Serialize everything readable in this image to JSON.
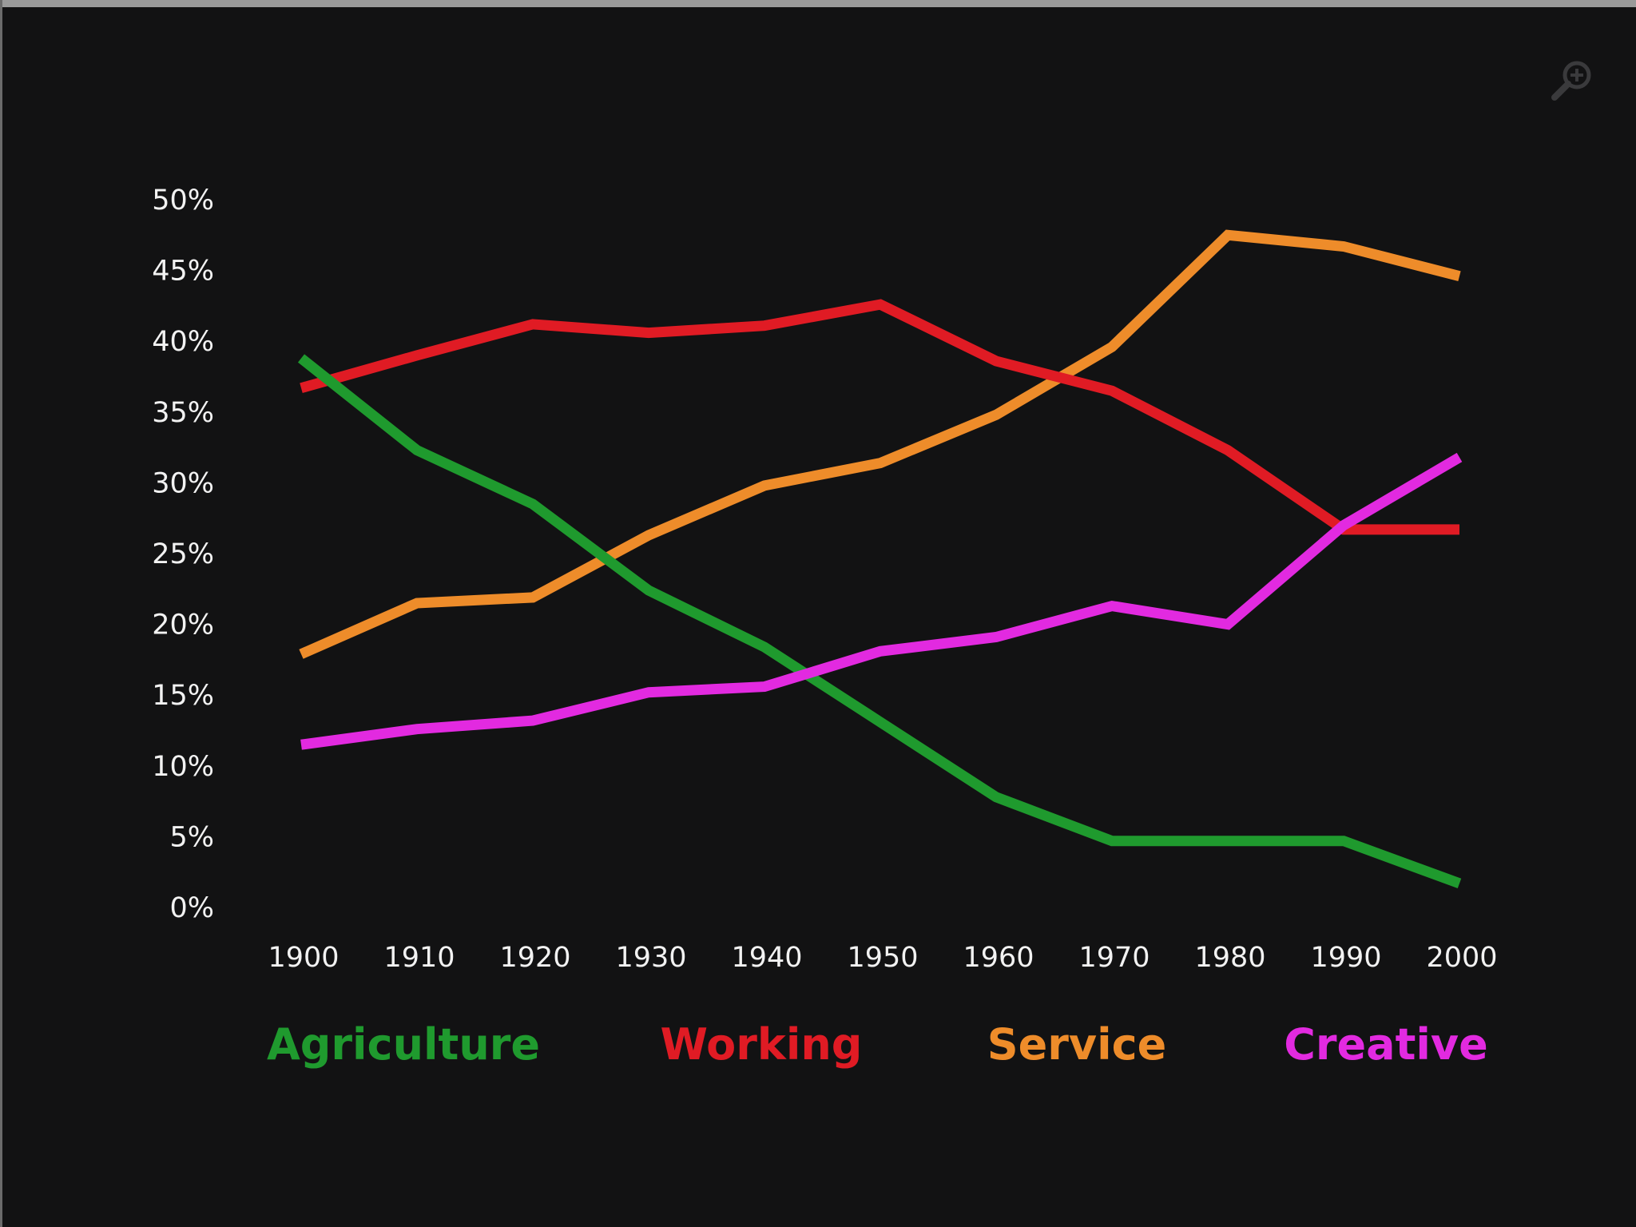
{
  "zoom_icon": "zoom-in-icon",
  "colors": {
    "background": "#121213",
    "text": "#f2f2f2",
    "agriculture": "#1f9a2e",
    "working": "#e01b24",
    "service": "#ee8c2a",
    "creative": "#e22ae0"
  },
  "chart_data": {
    "type": "line",
    "title": "",
    "xlabel": "",
    "ylabel": "",
    "x": [
      1900,
      1910,
      1920,
      1930,
      1940,
      1950,
      1960,
      1970,
      1980,
      1990,
      2000
    ],
    "x_tick_labels": [
      "1900",
      "1910",
      "1920",
      "1930",
      "1940",
      "1950",
      "1960",
      "1970",
      "1980",
      "1990",
      "2000"
    ],
    "y_ticks": [
      0,
      5,
      10,
      15,
      20,
      25,
      30,
      35,
      40,
      45,
      50
    ],
    "y_tick_labels": [
      "0%",
      "5%",
      "10%",
      "15%",
      "20%",
      "25%",
      "30%",
      "35%",
      "40%",
      "45%",
      "50%"
    ],
    "ylim": [
      0,
      50
    ],
    "xlim": [
      1900,
      2000
    ],
    "grid": false,
    "legend_position": "bottom",
    "series": [
      {
        "name": "Agriculture",
        "color": "#1f9a2e",
        "values": [
          38.8,
          32.3,
          28.5,
          22.4,
          18.4,
          13.1,
          7.8,
          4.7,
          4.7,
          4.7,
          1.7
        ]
      },
      {
        "name": "Working",
        "color": "#e01b24",
        "values": [
          36.7,
          39.0,
          41.2,
          40.6,
          41.1,
          42.6,
          38.6,
          36.5,
          32.3,
          26.7,
          26.7
        ]
      },
      {
        "name": "Service",
        "color": "#ee8c2a",
        "values": [
          17.9,
          21.5,
          21.9,
          26.3,
          29.8,
          31.4,
          34.8,
          39.6,
          47.5,
          46.7,
          44.6
        ]
      },
      {
        "name": "Creative",
        "color": "#e22ae0",
        "values": [
          11.5,
          12.6,
          13.2,
          15.2,
          15.6,
          18.1,
          19.1,
          21.3,
          20.0,
          27.0,
          31.8
        ]
      }
    ]
  }
}
